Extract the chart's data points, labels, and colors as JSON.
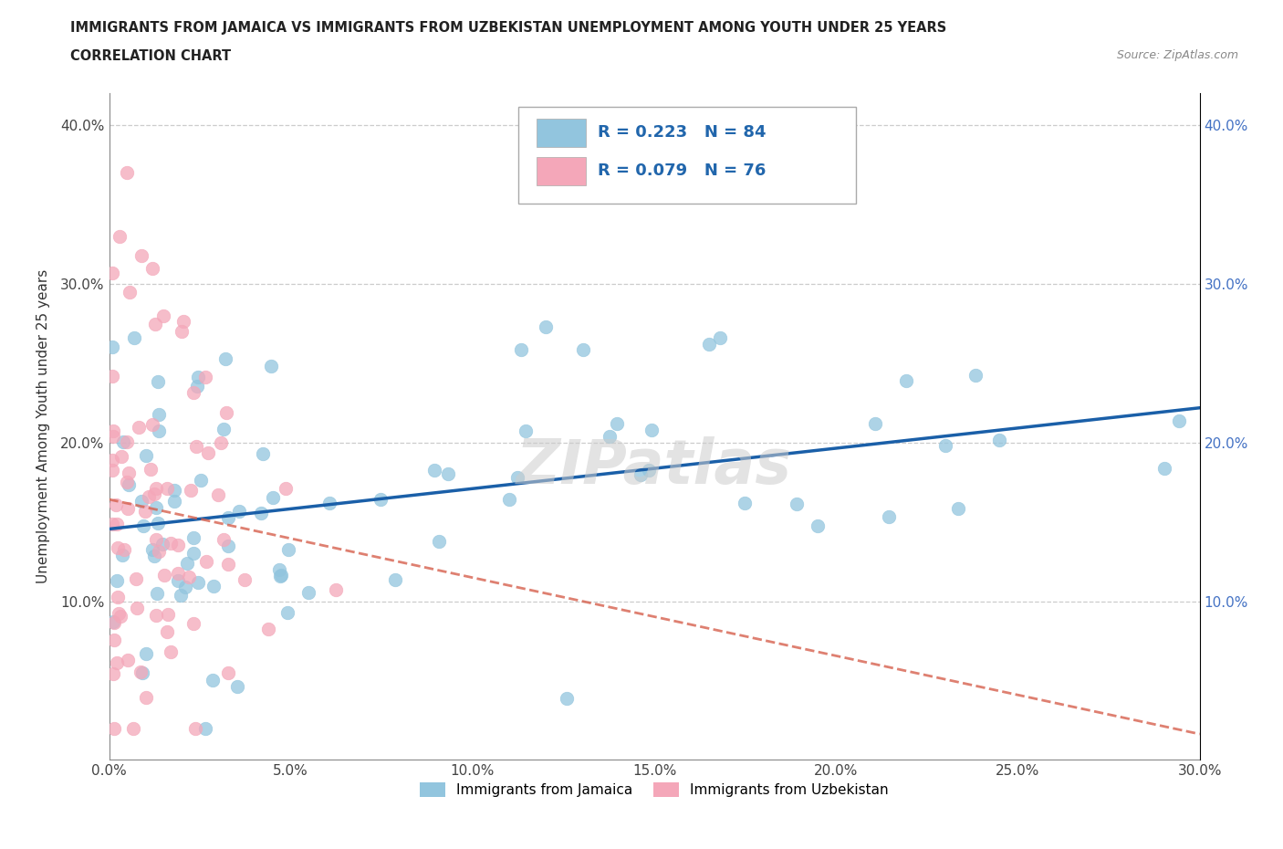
{
  "title_line1": "IMMIGRANTS FROM JAMAICA VS IMMIGRANTS FROM UZBEKISTAN UNEMPLOYMENT AMONG YOUTH UNDER 25 YEARS",
  "title_line2": "CORRELATION CHART",
  "source_text": "Source: ZipAtlas.com",
  "ylabel": "Unemployment Among Youth under 25 years",
  "legend_label1": "Immigrants from Jamaica",
  "legend_label2": "Immigrants from Uzbekistan",
  "R1": 0.223,
  "N1": 84,
  "R2": 0.079,
  "N2": 76,
  "color1": "#92C5DE",
  "color2": "#F4A7B9",
  "line1_color": "#1A5FA8",
  "line2_color": "#D6604D",
  "xmin": 0.0,
  "xmax": 0.3,
  "ymin": 0.0,
  "ymax": 0.42,
  "xticks": [
    0.0,
    0.05,
    0.1,
    0.15,
    0.2,
    0.25,
    0.3
  ],
  "yticks": [
    0.0,
    0.1,
    0.2,
    0.3,
    0.4
  ],
  "watermark": "ZIPatlas"
}
